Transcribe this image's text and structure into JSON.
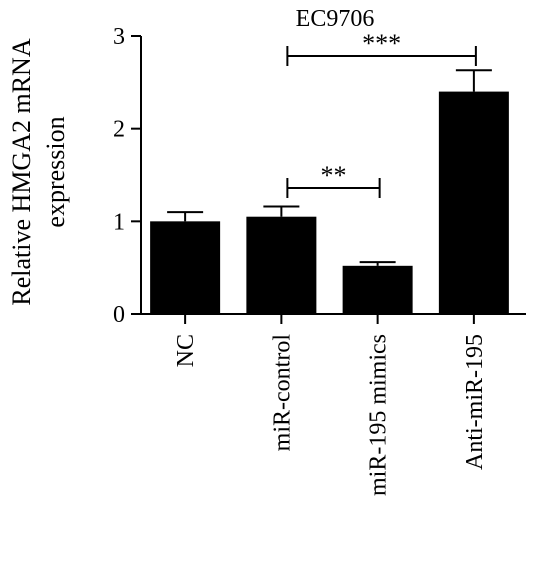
{
  "chart_data": {
    "type": "bar",
    "title": "EC9706",
    "ylabel_lines": [
      "Relative HMGA2 mRNA",
      "expression"
    ],
    "xlabel": "",
    "categories": [
      "NC",
      "miR-control",
      "miR-195 mimics",
      "Anti-miR-195"
    ],
    "values": [
      1.0,
      1.05,
      0.52,
      2.4
    ],
    "errors": [
      0.1,
      0.11,
      0.04,
      0.23
    ],
    "ylim": [
      0,
      3
    ],
    "yticks": [
      0,
      1,
      2,
      3
    ],
    "bar_color": "#000000",
    "grid": false,
    "legend": "none",
    "significance": [
      {
        "from": 1,
        "to": 2,
        "label": "**"
      },
      {
        "from": 1,
        "to": 3,
        "label": "***"
      }
    ]
  }
}
